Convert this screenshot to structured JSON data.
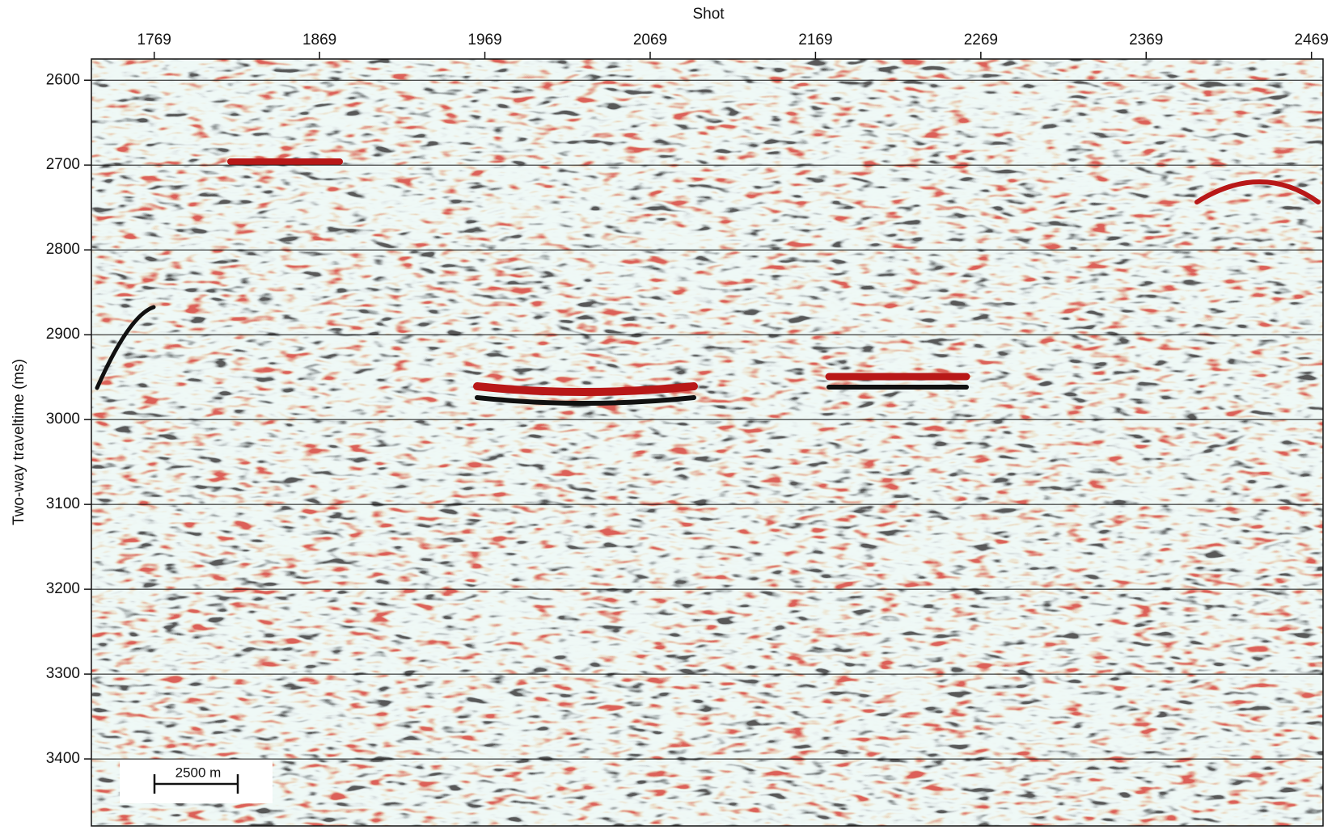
{
  "chart_data": {
    "type": "seismic",
    "x_label": "Shot",
    "y_label": "Two-way traveltime (ms)",
    "xlim": [
      1731,
      2476
    ],
    "xticks": [
      1769,
      1869,
      1969,
      2069,
      2169,
      2269,
      2369,
      2469
    ],
    "ylim": [
      2575,
      3479
    ],
    "yticks": [
      2600,
      2700,
      2800,
      2900,
      3000,
      3100,
      3200,
      3300,
      3400
    ],
    "grid": true,
    "scale_bar": "2500 m"
  }
}
